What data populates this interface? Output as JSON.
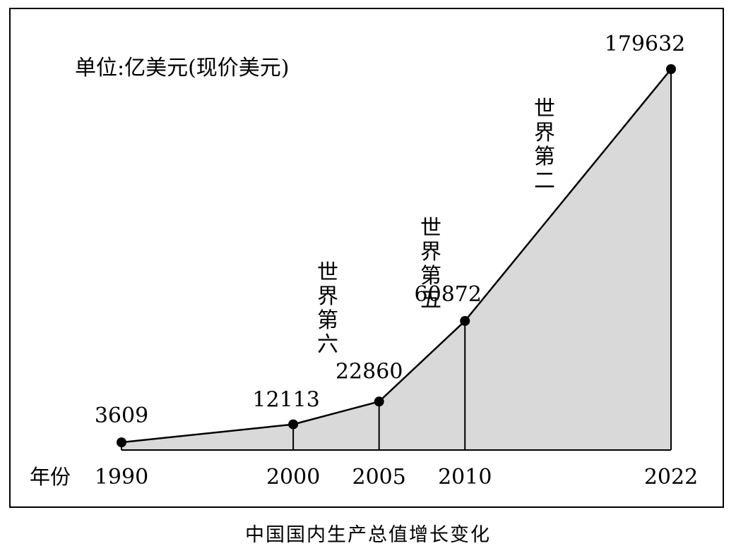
{
  "chart_data": {
    "type": "area",
    "unit_label": "单位:亿美元(现价美元)",
    "xlabel": "年份",
    "caption": "中国国内生产总值增长变化",
    "x": [
      "1990",
      "2000",
      "2005",
      "2010",
      "2022"
    ],
    "values": [
      3609,
      12113,
      22860,
      60872,
      179632
    ],
    "data_labels": [
      "3609",
      "12113",
      "22860",
      "60872",
      "179632"
    ],
    "rank_annotations": [
      {
        "x": "2000",
        "text": "世界第六"
      },
      {
        "x": "2005",
        "text": "世界第五"
      },
      {
        "x": "2010",
        "text": "世界第二"
      }
    ],
    "fill_color": "#d9d9d9",
    "line_color": "#000000"
  }
}
